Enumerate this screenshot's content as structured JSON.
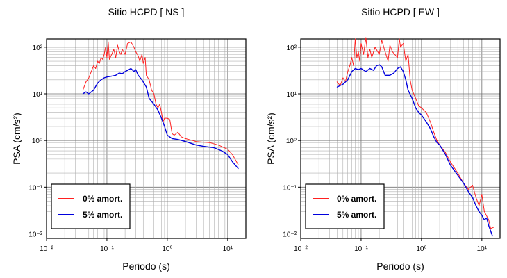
{
  "chart_data": [
    {
      "type": "line",
      "title": "Sitio HCPD [ NS ]",
      "xlabel": "Periodo (s)",
      "ylabel": "PSA (cm/s²)",
      "xscale": "log",
      "yscale": "log",
      "xlim": [
        0.01,
        20
      ],
      "ylim": [
        0.008,
        150
      ],
      "xticks": [
        "10⁻²",
        "10⁻¹",
        "10⁰",
        "10¹"
      ],
      "yticks": [
        "10⁻²",
        "10⁻¹",
        "10⁰",
        "10¹",
        "10²"
      ],
      "grid": true,
      "legend_position": "bottom-left",
      "series": [
        {
          "name": "0% amort.",
          "color": "#ff2020",
          "points": [
            [
              0.04,
              12
            ],
            [
              0.045,
              18
            ],
            [
              0.05,
              22
            ],
            [
              0.055,
              30
            ],
            [
              0.06,
              40
            ],
            [
              0.065,
              35
            ],
            [
              0.07,
              50
            ],
            [
              0.075,
              45
            ],
            [
              0.08,
              60
            ],
            [
              0.085,
              55
            ],
            [
              0.09,
              70
            ],
            [
              0.095,
              100
            ],
            [
              0.1,
              60
            ],
            [
              0.105,
              130
            ],
            [
              0.11,
              55
            ],
            [
              0.12,
              70
            ],
            [
              0.13,
              90
            ],
            [
              0.14,
              60
            ],
            [
              0.15,
              110
            ],
            [
              0.16,
              80
            ],
            [
              0.17,
              70
            ],
            [
              0.18,
              90
            ],
            [
              0.2,
              70
            ],
            [
              0.22,
              120
            ],
            [
              0.25,
              130
            ],
            [
              0.28,
              100
            ],
            [
              0.3,
              80
            ],
            [
              0.33,
              65
            ],
            [
              0.35,
              50
            ],
            [
              0.38,
              70
            ],
            [
              0.4,
              45
            ],
            [
              0.43,
              60
            ],
            [
              0.45,
              25
            ],
            [
              0.5,
              20
            ],
            [
              0.55,
              12
            ],
            [
              0.6,
              10
            ],
            [
              0.65,
              6
            ],
            [
              0.7,
              5
            ],
            [
              0.75,
              6
            ],
            [
              0.8,
              4
            ],
            [
              0.85,
              2.5
            ],
            [
              0.9,
              3
            ],
            [
              1.0,
              3
            ],
            [
              1.1,
              2.8
            ],
            [
              1.2,
              1.4
            ],
            [
              1.3,
              1.3
            ],
            [
              1.5,
              1.5
            ],
            [
              1.7,
              1.2
            ],
            [
              2,
              1.1
            ],
            [
              3,
              0.95
            ],
            [
              5,
              0.9
            ],
            [
              7,
              0.8
            ],
            [
              10,
              0.65
            ],
            [
              12,
              0.5
            ],
            [
              15,
              0.3
            ]
          ]
        },
        {
          "name": "5% amort.",
          "color": "#0000dd",
          "points": [
            [
              0.04,
              10
            ],
            [
              0.045,
              11
            ],
            [
              0.05,
              10
            ],
            [
              0.06,
              12
            ],
            [
              0.07,
              17
            ],
            [
              0.08,
              20
            ],
            [
              0.09,
              22
            ],
            [
              0.1,
              23
            ],
            [
              0.12,
              24
            ],
            [
              0.14,
              25
            ],
            [
              0.16,
              28
            ],
            [
              0.18,
              27
            ],
            [
              0.2,
              30
            ],
            [
              0.22,
              32
            ],
            [
              0.25,
              35
            ],
            [
              0.28,
              30
            ],
            [
              0.3,
              33
            ],
            [
              0.33,
              25
            ],
            [
              0.38,
              20
            ],
            [
              0.45,
              14
            ],
            [
              0.5,
              8
            ],
            [
              0.6,
              6
            ],
            [
              0.7,
              4.5
            ],
            [
              0.8,
              3
            ],
            [
              0.9,
              2
            ],
            [
              1.0,
              1.3
            ],
            [
              1.2,
              1.1
            ],
            [
              1.5,
              1.05
            ],
            [
              2,
              0.95
            ],
            [
              3,
              0.8
            ],
            [
              4,
              0.75
            ],
            [
              6,
              0.7
            ],
            [
              8,
              0.6
            ],
            [
              10,
              0.5
            ],
            [
              12,
              0.35
            ],
            [
              15,
              0.25
            ]
          ]
        }
      ]
    },
    {
      "type": "line",
      "title": "Sitio HCPD [ EW ]",
      "xlabel": "Periodo (s)",
      "ylabel": "PSA (cm/s²)",
      "xscale": "log",
      "yscale": "log",
      "xlim": [
        0.01,
        20
      ],
      "ylim": [
        0.008,
        150
      ],
      "xticks": [
        "10⁻²",
        "10⁻¹",
        "10⁰",
        "10¹"
      ],
      "yticks": [
        "10⁻²",
        "10⁻¹",
        "10⁰",
        "10¹",
        "10²"
      ],
      "grid": true,
      "legend_position": "bottom-left",
      "series": [
        {
          "name": "0% amort.",
          "color": "#ff2020",
          "points": [
            [
              0.04,
              18
            ],
            [
              0.045,
              15
            ],
            [
              0.05,
              22
            ],
            [
              0.055,
              18
            ],
            [
              0.06,
              30
            ],
            [
              0.065,
              40
            ],
            [
              0.07,
              60
            ],
            [
              0.075,
              40
            ],
            [
              0.08,
              150
            ],
            [
              0.085,
              60
            ],
            [
              0.09,
              80
            ],
            [
              0.095,
              50
            ],
            [
              0.1,
              120
            ],
            [
              0.11,
              70
            ],
            [
              0.12,
              160
            ],
            [
              0.13,
              60
            ],
            [
              0.14,
              90
            ],
            [
              0.15,
              60
            ],
            [
              0.17,
              100
            ],
            [
              0.2,
              70
            ],
            [
              0.22,
              140
            ],
            [
              0.25,
              80
            ],
            [
              0.28,
              50
            ],
            [
              0.3,
              110
            ],
            [
              0.33,
              80
            ],
            [
              0.36,
              70
            ],
            [
              0.4,
              60
            ],
            [
              0.43,
              150
            ],
            [
              0.45,
              100
            ],
            [
              0.5,
              120
            ],
            [
              0.55,
              50
            ],
            [
              0.6,
              70
            ],
            [
              0.65,
              20
            ],
            [
              0.7,
              12
            ],
            [
              0.8,
              8
            ],
            [
              0.9,
              5.5
            ],
            [
              1.0,
              5
            ],
            [
              1.2,
              4
            ],
            [
              1.4,
              2.5
            ],
            [
              1.6,
              1.5
            ],
            [
              1.8,
              1.0
            ],
            [
              2,
              0.8
            ],
            [
              2.5,
              0.55
            ],
            [
              3,
              0.35
            ],
            [
              4,
              0.2
            ],
            [
              5,
              0.12
            ],
            [
              6,
              0.09
            ],
            [
              7,
              0.11
            ],
            [
              8,
              0.06
            ],
            [
              9,
              0.04
            ],
            [
              10,
              0.07
            ],
            [
              11,
              0.03
            ],
            [
              13,
              0.02
            ],
            [
              14,
              0.013
            ],
            [
              16,
              0.014
            ]
          ]
        },
        {
          "name": "5% amort.",
          "color": "#0000dd",
          "points": [
            [
              0.04,
              14
            ],
            [
              0.05,
              16
            ],
            [
              0.06,
              20
            ],
            [
              0.07,
              30
            ],
            [
              0.08,
              35
            ],
            [
              0.09,
              33
            ],
            [
              0.1,
              35
            ],
            [
              0.12,
              30
            ],
            [
              0.14,
              35
            ],
            [
              0.16,
              32
            ],
            [
              0.18,
              40
            ],
            [
              0.2,
              42
            ],
            [
              0.22,
              38
            ],
            [
              0.25,
              25
            ],
            [
              0.3,
              25
            ],
            [
              0.35,
              28
            ],
            [
              0.4,
              35
            ],
            [
              0.45,
              38
            ],
            [
              0.5,
              30
            ],
            [
              0.55,
              20
            ],
            [
              0.6,
              12
            ],
            [
              0.7,
              8
            ],
            [
              0.8,
              5
            ],
            [
              0.9,
              4
            ],
            [
              1.0,
              3.5
            ],
            [
              1.2,
              2.5
            ],
            [
              1.4,
              1.8
            ],
            [
              1.6,
              1.2
            ],
            [
              1.8,
              0.9
            ],
            [
              2,
              0.8
            ],
            [
              2.5,
              0.5
            ],
            [
              3,
              0.3
            ],
            [
              4,
              0.18
            ],
            [
              5,
              0.12
            ],
            [
              6,
              0.08
            ],
            [
              7,
              0.06
            ],
            [
              8,
              0.04
            ],
            [
              9,
              0.03
            ],
            [
              10,
              0.025
            ],
            [
              11,
              0.02
            ],
            [
              12,
              0.022
            ],
            [
              13,
              0.015
            ],
            [
              15,
              0.009
            ]
          ]
        }
      ]
    }
  ]
}
